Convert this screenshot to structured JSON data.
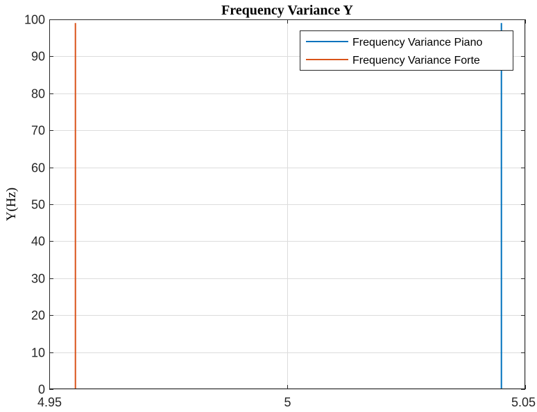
{
  "chart_data": {
    "type": "line",
    "title": "Frequency Variance Y",
    "xlabel": "",
    "ylabel": "Y(Hz)",
    "xlim": [
      4.95,
      5.05
    ],
    "ylim": [
      0,
      100
    ],
    "x_ticks": [
      "4.95",
      "5",
      "5.05"
    ],
    "x_tick_values": [
      4.95,
      5.0,
      5.05
    ],
    "y_ticks": [
      "0",
      "10",
      "20",
      "30",
      "40",
      "50",
      "60",
      "70",
      "80",
      "90",
      "100"
    ],
    "y_tick_values": [
      0,
      10,
      20,
      30,
      40,
      50,
      60,
      70,
      80,
      90,
      100
    ],
    "grid": true,
    "legend_position": "top-right",
    "series": [
      {
        "name": "Frequency Variance Piano",
        "color": "#0072BD",
        "x": [
          5.045,
          5.045
        ],
        "y": [
          0,
          99
        ]
      },
      {
        "name": "Frequency Variance Forte",
        "color": "#D95319",
        "x": [
          4.9555,
          4.9555
        ],
        "y": [
          0,
          99
        ]
      }
    ]
  }
}
